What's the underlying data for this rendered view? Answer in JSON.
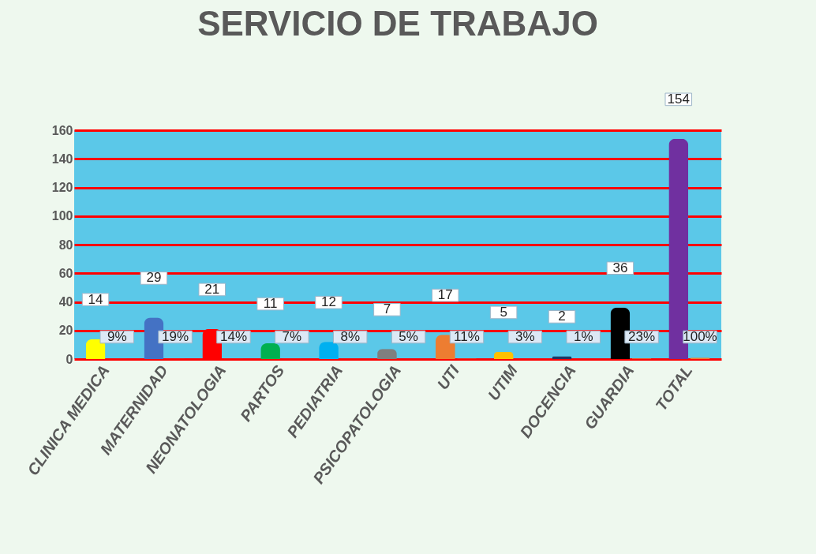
{
  "chart_data": {
    "type": "bar",
    "title": "SERVICIO  DE TRABAJO",
    "categories": [
      "CLINICA MEDICA",
      "MATERNIDAD",
      "NEONATOLOGIA",
      "PARTOS",
      "PEDIATRIA",
      "PSICOPATOLOGIA",
      "UTI",
      "UTIM",
      "DOCENCIA",
      "GUARDIA",
      "TOTAL"
    ],
    "series": [
      {
        "colors": [
          "#ffff00",
          "#4472c4",
          "#ff0000",
          "#00b050",
          "#00b0f0",
          "#7f7f7f",
          "#ed7d31",
          "#ffc000",
          "#1f3864",
          "#000000",
          "#7030a0"
        ],
        "values": [
          14,
          29,
          21,
          11,
          12,
          7,
          17,
          5,
          2,
          36,
          154
        ],
        "value_labels": [
          "14",
          "29",
          "21",
          "11",
          "12",
          "7",
          "17",
          "5",
          "2",
          "36",
          "154"
        ]
      },
      {
        "color": "#ed7d31",
        "values": [
          0.09,
          0.19,
          0.14,
          0.07,
          0.08,
          0.05,
          0.11,
          0.03,
          0.01,
          0.23,
          1
        ],
        "value_labels": [
          "9%",
          "19%",
          "14%",
          "7%",
          "8%",
          "5%",
          "11%",
          "3%",
          "1%",
          "23%",
          "100%"
        ]
      }
    ],
    "ylim": [
      0,
      160
    ],
    "yticks": [
      0,
      20,
      40,
      60,
      80,
      100,
      120,
      140,
      160
    ],
    "grid": "y"
  }
}
